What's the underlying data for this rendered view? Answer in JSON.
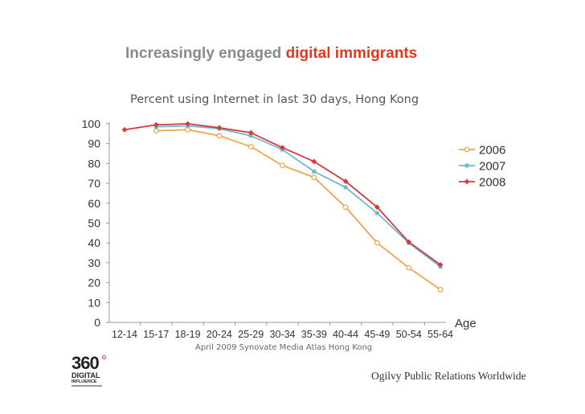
{
  "slide": {
    "title_plain": "Increasingly engaged",
    "title_accent": "digital immigrants",
    "subtitle": "Percent using Internet in last 30 days, Hong Kong",
    "source": "April 2009 Synovate Media Atlas Hong Kong",
    "logo_number": "360",
    "logo_line1": "DIGITAL",
    "logo_line2": "INFLUENCE",
    "footer_brand": "Ogilvy Public Relations Worldwide",
    "accent_color": "#e8361e"
  },
  "chart_data": {
    "type": "line",
    "title": "Percent using Internet in last 30 days, Hong Kong",
    "xlabel": "Age",
    "ylabel": "",
    "ylim": [
      0,
      100
    ],
    "yticks": [
      0,
      10,
      20,
      30,
      40,
      50,
      60,
      70,
      80,
      90,
      100
    ],
    "grid": false,
    "legend": "right",
    "categories": [
      "12-14",
      "15-17",
      "18-19",
      "20-24",
      "25-29",
      "30-34",
      "35-39",
      "40-44",
      "45-49",
      "50-54",
      "55-64"
    ],
    "series": [
      {
        "name": "2006",
        "color": "#f0a54a",
        "marker": "open-circle",
        "values": [
          null,
          96.5,
          97,
          94,
          88.5,
          79,
          73,
          58,
          40,
          27.5,
          16.5
        ]
      },
      {
        "name": "2007",
        "color": "#6db8cf",
        "marker": "square",
        "values": [
          null,
          98.5,
          99,
          97.5,
          94,
          87,
          76,
          68,
          55,
          40,
          28
        ]
      },
      {
        "name": "2008",
        "color": "#d63a3a",
        "marker": "diamond",
        "values": [
          97,
          99.5,
          100,
          98,
          95.5,
          88,
          81,
          71,
          58,
          40.5,
          29
        ]
      }
    ]
  }
}
